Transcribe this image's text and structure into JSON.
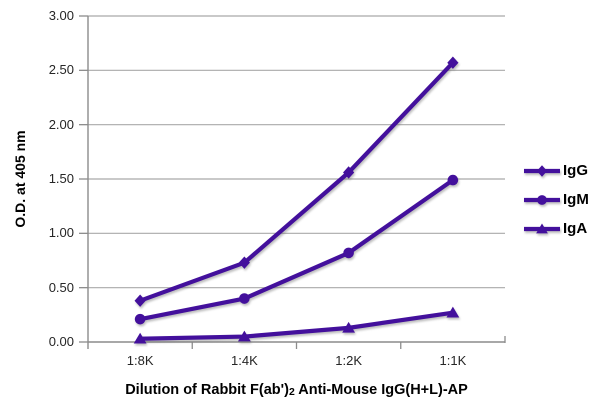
{
  "chart_data": {
    "type": "line",
    "title": "Dilution of Rabbit F(ab')2 Anti-Mouse IgG(H+L)-AP",
    "title_parts": {
      "pre": "Dilution of Rabbit F(ab')",
      "sub": "2",
      "post": " Anti-Mouse IgG(H+L)-AP"
    },
    "ylabel": "O.D. at 405 nm",
    "xlabel_is_title_below_axis": true,
    "categories": [
      "1:8K",
      "1:4K",
      "1:2K",
      "1:1K"
    ],
    "series": [
      {
        "name": "IgG",
        "marker": "diamond",
        "values": [
          0.38,
          0.73,
          1.56,
          2.57
        ]
      },
      {
        "name": "IgM",
        "marker": "circle",
        "values": [
          0.21,
          0.4,
          0.82,
          1.49
        ]
      },
      {
        "name": "IgA",
        "marker": "triangle",
        "values": [
          0.03,
          0.05,
          0.13,
          0.27
        ]
      }
    ],
    "ylim": [
      0,
      3
    ],
    "ytick_step": 0.5,
    "ytick_labels": [
      "0.00",
      "0.50",
      "1.00",
      "1.50",
      "2.00",
      "2.50",
      "3.00"
    ],
    "grid": true,
    "legend_position": "right",
    "colors": {
      "line": "#43109c",
      "grid": "#a9a9a9",
      "axis": "#8c8c8c",
      "tick_text": "#262626",
      "label_text": "#000000",
      "background": "#ffffff"
    }
  }
}
